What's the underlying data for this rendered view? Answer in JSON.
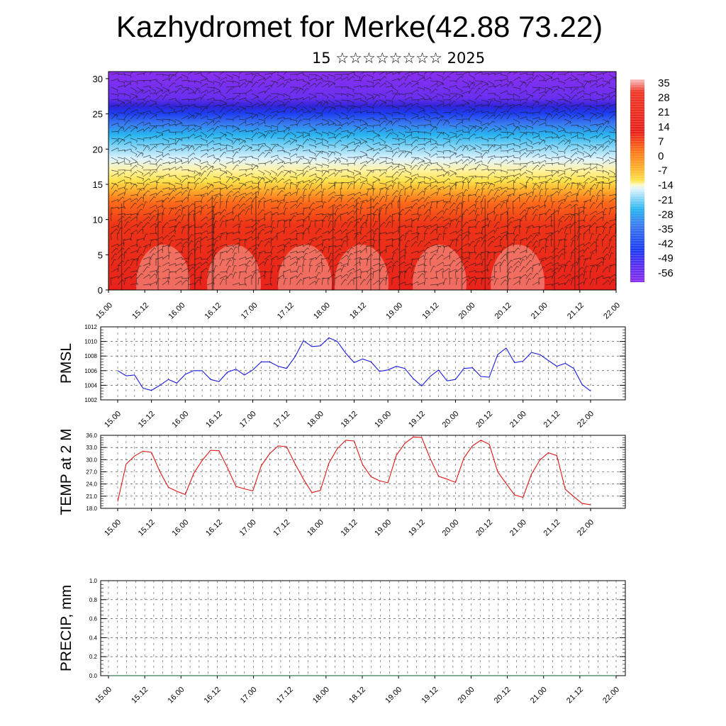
{
  "title": "Kazhydromet for Merke(42.88 73.22)",
  "subtitle": "15 ☆☆☆☆☆☆☆☆ 2025",
  "chart_data": [
    {
      "type": "heatmap",
      "x_tick_labels": [
        "15.00",
        "15.12",
        "16.00",
        "16.12",
        "17.00",
        "17.12",
        "18.00",
        "18.12",
        "19.00",
        "19.12",
        "20.00",
        "20.12",
        "21.00",
        "21.12",
        "22.00"
      ],
      "y_ticks": [
        0,
        5,
        10,
        15,
        20,
        25,
        30
      ],
      "ylim": [
        0,
        31
      ],
      "colorbar_labels": [
        "35",
        "28",
        "21",
        "14",
        "7",
        "0",
        "-7",
        "-14",
        "-21",
        "-28",
        "-35",
        "-42",
        "-49",
        "-56"
      ],
      "colors": {
        "warm": "#e8221b",
        "orange": "#ff8c1a",
        "yellow": "#ffe34d",
        "pale": "#dff4ff",
        "cyan": "#29b5f0",
        "blue": "#1d3cf2",
        "violet": "#8a2ff0",
        "bg_warm_hi": "#f8b3a9"
      }
    },
    {
      "type": "line",
      "ylabel": "PMSL",
      "ylim": [
        1002,
        1012
      ],
      "y_tick_labels": [
        "1002",
        "1004",
        "1006",
        "1008",
        "1010",
        "1012"
      ],
      "x_tick_labels": [
        "15.00",
        "15.12",
        "16.00",
        "16.12",
        "17.00",
        "17.12",
        "18.00",
        "18.12",
        "19.00",
        "19.12",
        "20.00",
        "20.12",
        "21.00",
        "21.12",
        "22.00"
      ],
      "color": "#1a1ae0",
      "values": [
        1006.0,
        1005.3,
        1005.4,
        1003.6,
        1003.3,
        1004.0,
        1004.8,
        1004.3,
        1005.5,
        1006.0,
        1006.0,
        1004.8,
        1004.5,
        1005.8,
        1006.2,
        1005.4,
        1006.1,
        1007.2,
        1007.2,
        1006.6,
        1006.3,
        1007.9,
        1010.1,
        1009.3,
        1009.4,
        1010.5,
        1010.0,
        1008.4,
        1007.1,
        1007.6,
        1007.2,
        1005.9,
        1006.1,
        1006.6,
        1006.3,
        1004.9,
        1003.9,
        1005.2,
        1006.1,
        1004.6,
        1004.8,
        1006.3,
        1006.4,
        1005.2,
        1005.1,
        1008.2,
        1009.1,
        1007.1,
        1007.3,
        1008.5,
        1008.2,
        1007.4,
        1006.6,
        1007.0,
        1006.3,
        1004.1,
        1003.2
      ]
    },
    {
      "type": "line",
      "ylabel": "TEMP at 2 M",
      "ylim": [
        18,
        36
      ],
      "y_tick_labels": [
        "18.0",
        "21.0",
        "24.0",
        "27.0",
        "30.0",
        "33.0",
        "36.0"
      ],
      "x_tick_labels": [
        "15.00",
        "15.12",
        "16.00",
        "16.12",
        "17.00",
        "17.12",
        "18.00",
        "18.12",
        "19.00",
        "19.12",
        "20.00",
        "20.12",
        "21.00",
        "21.12",
        "22.00"
      ],
      "color": "#e01515",
      "values": [
        19.7,
        28.9,
        30.9,
        32.1,
        31.8,
        27.0,
        23.2,
        22.2,
        21.4,
        26.6,
        29.8,
        32.3,
        32.2,
        28.0,
        23.4,
        22.8,
        22.3,
        28.5,
        31.5,
        33.4,
        33.2,
        29.0,
        25.2,
        21.9,
        22.4,
        29.1,
        32.7,
        34.8,
        34.6,
        28.8,
        25.8,
        24.8,
        24.3,
        31.1,
        34.0,
        35.6,
        35.5,
        30.3,
        25.9,
        25.2,
        24.4,
        30.4,
        33.4,
        34.8,
        33.8,
        27.0,
        24.1,
        21.3,
        20.7,
        26.4,
        29.9,
        31.7,
        31.0,
        22.7,
        20.9,
        19.2,
        18.9
      ]
    },
    {
      "type": "line",
      "ylabel": "PRECIP, mm",
      "ylim": [
        0,
        1
      ],
      "y_tick_labels": [
        "0.0",
        "0.2",
        "0.4",
        "0.6",
        "0.8",
        "1.0"
      ],
      "x_tick_labels": [
        "15.00",
        "15.12",
        "16.00",
        "16.12",
        "17.00",
        "17.12",
        "18.00",
        "18.12",
        "19.00",
        "19.12",
        "20.00",
        "20.12",
        "21.00",
        "21.12",
        "22.00"
      ],
      "color": "#0a5a2a",
      "values": [
        0,
        0,
        0,
        0,
        0,
        0,
        0,
        0,
        0,
        0,
        0,
        0,
        0,
        0,
        0,
        0,
        0,
        0,
        0,
        0,
        0,
        0,
        0,
        0,
        0,
        0,
        0,
        0,
        0,
        0,
        0,
        0,
        0,
        0,
        0,
        0,
        0,
        0,
        0,
        0,
        0,
        0,
        0,
        0,
        0,
        0,
        0,
        0,
        0,
        0,
        0,
        0,
        0,
        0,
        0,
        0,
        0
      ]
    }
  ]
}
